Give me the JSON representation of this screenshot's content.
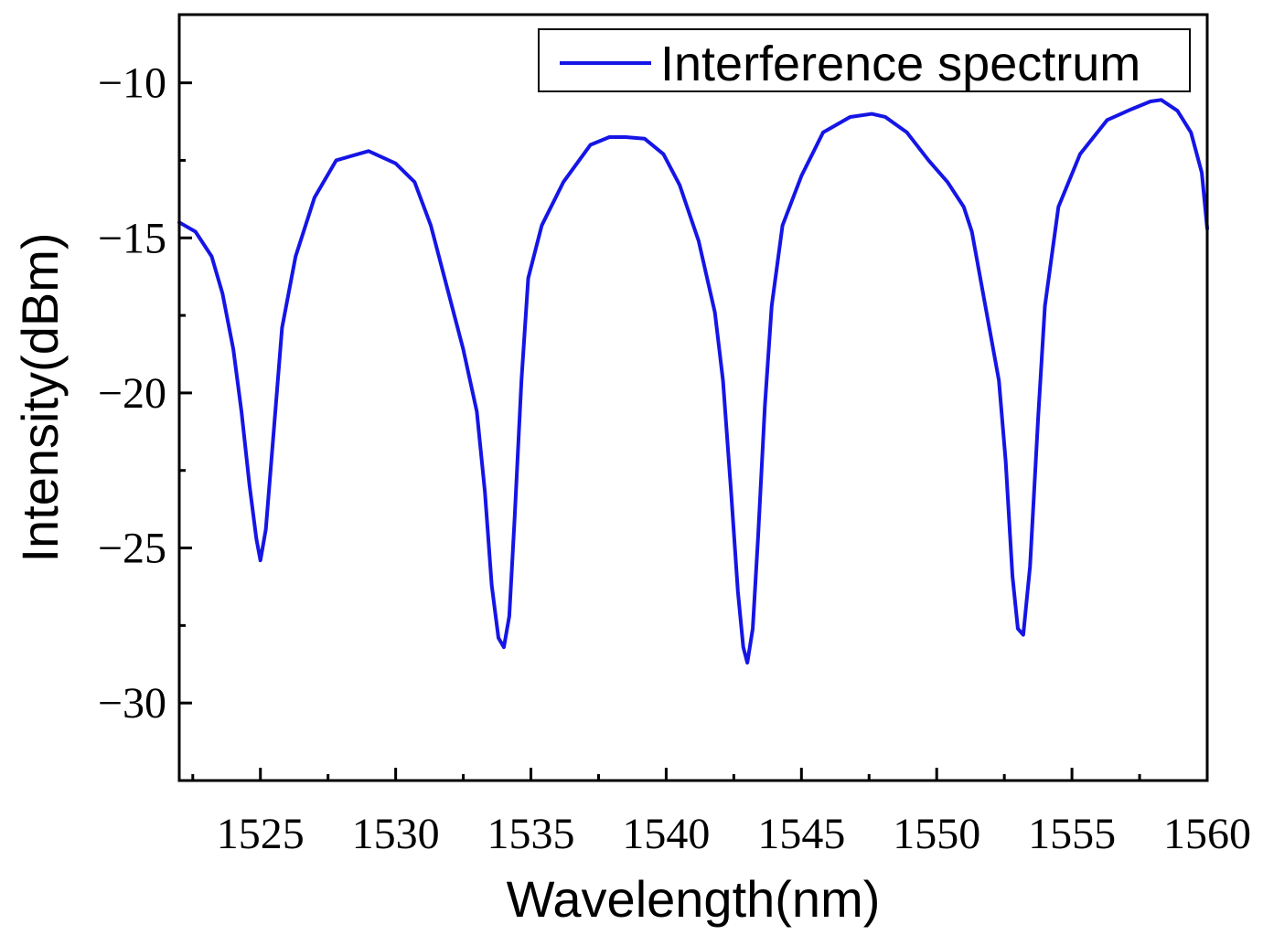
{
  "chart_data": {
    "type": "line",
    "title": "",
    "xlabel": "Wavelength(nm)",
    "ylabel": "Intensity(dBm)",
    "xlim": [
      1522,
      1560
    ],
    "ylim": [
      -32.5,
      -7.8
    ],
    "x_ticks": [
      1525,
      1530,
      1535,
      1540,
      1545,
      1550,
      1555,
      1560
    ],
    "x_tick_labels": [
      "1525",
      "1530",
      "1535",
      "1540",
      "1545",
      "1550",
      "1555",
      "1560"
    ],
    "y_ticks": [
      -10,
      -15,
      -20,
      -25,
      -30
    ],
    "y_tick_labels": [
      "−10",
      "−15",
      "−20",
      "−25",
      "−30"
    ],
    "grid": false,
    "legend": {
      "position": "top-right",
      "entries": [
        "Interference spectrum"
      ]
    },
    "series": [
      {
        "name": "Interference spectrum",
        "color": "#1515e6",
        "x": [
          1522,
          1522.6,
          1523.2,
          1523.6,
          1524.0,
          1524.3,
          1524.6,
          1524.85,
          1525.0,
          1525.2,
          1525.45,
          1525.8,
          1526.3,
          1527.0,
          1527.8,
          1529.0,
          1530.0,
          1530.7,
          1531.3,
          1531.9,
          1532.5,
          1533.0,
          1533.3,
          1533.55,
          1533.8,
          1534.0,
          1534.2,
          1534.4,
          1534.65,
          1534.9,
          1535.4,
          1536.2,
          1537.2,
          1537.9,
          1538.5,
          1539.2,
          1539.9,
          1540.5,
          1541.2,
          1541.8,
          1542.1,
          1542.4,
          1542.65,
          1542.85,
          1543.0,
          1543.2,
          1543.4,
          1543.65,
          1543.9,
          1544.3,
          1545.0,
          1545.8,
          1546.8,
          1547.6,
          1548.1,
          1548.9,
          1549.7,
          1550.4,
          1551.0,
          1551.3,
          1551.8,
          1552.3,
          1552.55,
          1552.8,
          1553.0,
          1553.2,
          1553.45,
          1553.75,
          1554.0,
          1554.5,
          1555.3,
          1556.3,
          1557.2,
          1557.9,
          1558.3,
          1558.9,
          1559.4,
          1559.8,
          1560.0
        ],
        "y": [
          -14.5,
          -14.8,
          -15.6,
          -16.8,
          -18.6,
          -20.6,
          -23.0,
          -24.7,
          -25.4,
          -24.4,
          -21.7,
          -17.9,
          -15.6,
          -13.7,
          -12.5,
          -12.2,
          -12.6,
          -13.2,
          -14.6,
          -16.6,
          -18.6,
          -20.6,
          -23.2,
          -26.2,
          -27.9,
          -28.2,
          -27.2,
          -24.0,
          -19.6,
          -16.3,
          -14.6,
          -13.2,
          -12.0,
          -11.75,
          -11.75,
          -11.8,
          -12.3,
          -13.3,
          -15.1,
          -17.4,
          -19.6,
          -23.2,
          -26.4,
          -28.2,
          -28.7,
          -27.6,
          -24.6,
          -20.4,
          -17.2,
          -14.6,
          -13.0,
          -11.6,
          -11.1,
          -11.0,
          -11.1,
          -11.6,
          -12.5,
          -13.2,
          -14.0,
          -14.8,
          -17.2,
          -19.6,
          -22.2,
          -25.9,
          -27.6,
          -27.8,
          -25.6,
          -20.8,
          -17.2,
          -14.0,
          -12.3,
          -11.2,
          -10.85,
          -10.6,
          -10.55,
          -10.9,
          -11.6,
          -12.9,
          -14.7
        ]
      }
    ]
  }
}
